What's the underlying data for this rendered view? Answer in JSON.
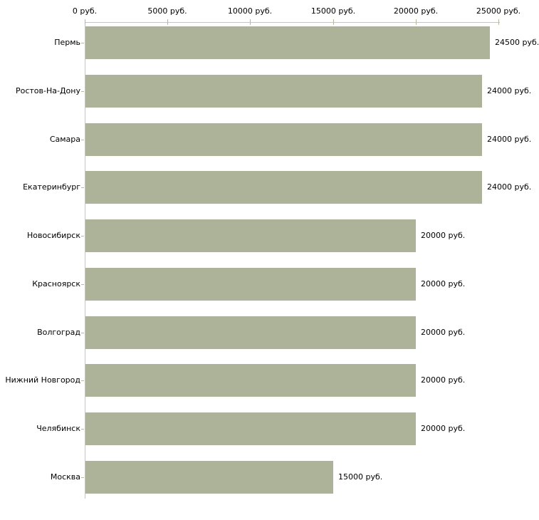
{
  "chart_data": {
    "type": "bar",
    "orientation": "horizontal",
    "title": "",
    "legend": "none",
    "grid": false,
    "categories": [
      "Пермь",
      "Ростов-На-Дону",
      "Самара",
      "Екатеринбург",
      "Новосибирск",
      "Красноярск",
      "Волгоград",
      "Нижний Новгород",
      "Челябинск",
      "Москва"
    ],
    "values": [
      24500,
      24000,
      24000,
      24000,
      20000,
      20000,
      20000,
      20000,
      20000,
      15000
    ],
    "value_labels": [
      "24500 руб.",
      "24000 руб.",
      "24000 руб.",
      "24000 руб.",
      "20000 руб.",
      "20000 руб.",
      "20000 руб.",
      "20000 руб.",
      "20000 руб.",
      "15000 руб."
    ],
    "x_axis": {
      "position": "top",
      "unit": "руб.",
      "tick_values": [
        0,
        5000,
        10000,
        15000,
        20000,
        25000
      ],
      "tick_labels": [
        "0 руб.",
        "5000 руб.",
        "10000 руб.",
        "15000 руб.",
        "20000 руб.",
        "25000 руб."
      ]
    },
    "xlim": [
      0,
      25000
    ],
    "colors": {
      "bar": "#adb399",
      "axis_line": "#c6c6c0",
      "tick": "#b7b79d",
      "text": "#000000",
      "background": "#ffffff"
    }
  }
}
